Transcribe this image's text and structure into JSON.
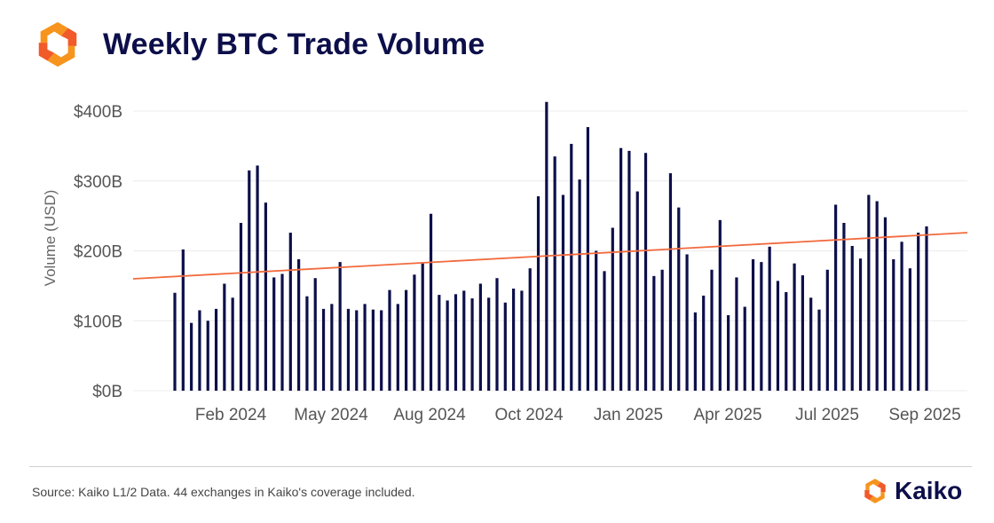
{
  "header": {
    "title": "Weekly BTC Trade Volume"
  },
  "footer": {
    "source": "Source: Kaiko L1/2 Data. 44 exchanges in Kaiko's coverage included.",
    "brand": "Kaiko"
  },
  "colors": {
    "bar": "#0d0f4a",
    "trend": "#f26a3d",
    "grid": "#ececec",
    "accent_orange": "#f7941d",
    "accent_red": "#f15a29"
  },
  "chart_data": {
    "type": "bar",
    "title": "Weekly BTC Trade Volume",
    "xlabel": "",
    "ylabel": "Volume (USD)",
    "ylim": [
      0,
      400
    ],
    "y_unit": "billion USD",
    "y_ticks": [
      0,
      100,
      200,
      300,
      400
    ],
    "y_tick_labels": [
      "$0B",
      "$100B",
      "$200B",
      "$300B",
      "$400B"
    ],
    "x_tick_labels": [
      "Feb 2024",
      "May 2024",
      "Aug 2024",
      "Oct 2024",
      "Jan 2025",
      "Apr 2025",
      "Jul 2025",
      "Sep 2025"
    ],
    "grid": true,
    "legend": "none",
    "values": [
      140,
      202,
      97,
      115,
      100,
      117,
      153,
      133,
      240,
      315,
      322,
      269,
      162,
      167,
      226,
      188,
      135,
      161,
      117,
      124,
      184,
      117,
      115,
      124,
      116,
      115,
      144,
      124,
      144,
      166,
      182,
      253,
      137,
      129,
      138,
      143,
      132,
      153,
      133,
      161,
      126,
      146,
      143,
      175,
      278,
      413,
      335,
      280,
      353,
      302,
      377,
      200,
      171,
      233,
      347,
      343,
      285,
      340,
      164,
      173,
      311,
      262,
      195,
      112,
      136,
      173,
      244,
      108,
      162,
      120,
      188,
      184,
      206,
      157,
      141,
      182,
      165,
      133,
      116,
      173,
      266,
      240,
      207,
      189,
      280,
      271,
      248,
      188,
      213,
      175,
      226,
      235
    ],
    "trend_line": {
      "start": 160,
      "end": 226
    }
  }
}
